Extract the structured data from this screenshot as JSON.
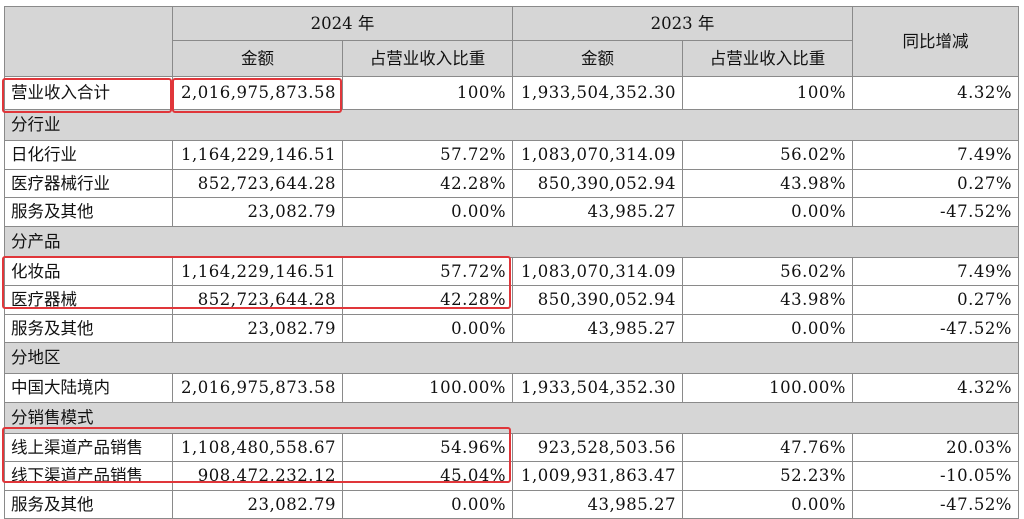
{
  "header": {
    "year_2024": "2024 年",
    "year_2023": "2023 年",
    "yoy": "同比增减",
    "amount": "金额",
    "ratio": "占营业收入比重"
  },
  "total": {
    "label": "营业收入合计",
    "amt_2024": "2,016,975,873.58",
    "pct_2024": "100%",
    "amt_2023": "1,933,504,352.30",
    "pct_2023": "100%",
    "yoy": "4.32%"
  },
  "sections": [
    {
      "title": "分行业",
      "rows": [
        {
          "label": "日化行业",
          "amt_2024": "1,164,229,146.51",
          "pct_2024": "57.72%",
          "amt_2023": "1,083,070,314.09",
          "pct_2023": "56.02%",
          "yoy": "7.49%"
        },
        {
          "label": "医疗器械行业",
          "amt_2024": "852,723,644.28",
          "pct_2024": "42.28%",
          "amt_2023": "850,390,052.94",
          "pct_2023": "43.98%",
          "yoy": "0.27%"
        },
        {
          "label": "服务及其他",
          "amt_2024": "23,082.79",
          "pct_2024": "0.00%",
          "amt_2023": "43,985.27",
          "pct_2023": "0.00%",
          "yoy": "-47.52%"
        }
      ]
    },
    {
      "title": "分产品",
      "rows": [
        {
          "label": "化妆品",
          "amt_2024": "1,164,229,146.51",
          "pct_2024": "57.72%",
          "amt_2023": "1,083,070,314.09",
          "pct_2023": "56.02%",
          "yoy": "7.49%"
        },
        {
          "label": "医疗器械",
          "amt_2024": "852,723,644.28",
          "pct_2024": "42.28%",
          "amt_2023": "850,390,052.94",
          "pct_2023": "43.98%",
          "yoy": "0.27%"
        },
        {
          "label": "服务及其他",
          "amt_2024": "23,082.79",
          "pct_2024": "0.00%",
          "amt_2023": "43,985.27",
          "pct_2023": "0.00%",
          "yoy": "-47.52%"
        }
      ]
    },
    {
      "title": "分地区",
      "rows": [
        {
          "label": "中国大陆境内",
          "amt_2024": "2,016,975,873.58",
          "pct_2024": "100.00%",
          "amt_2023": "1,933,504,352.30",
          "pct_2023": "100.00%",
          "yoy": "4.32%"
        }
      ]
    },
    {
      "title": "分销售模式",
      "rows": [
        {
          "label": "线上渠道产品销售",
          "amt_2024": "1,108,480,558.67",
          "pct_2024": "54.96%",
          "amt_2023": "923,528,503.56",
          "pct_2023": "47.76%",
          "yoy": "20.03%"
        },
        {
          "label": "线下渠道产品销售",
          "amt_2024": "908,472,232.12",
          "pct_2024": "45.04%",
          "amt_2023": "1,009,931,863.47",
          "pct_2023": "52.23%",
          "yoy": "-10.05%"
        },
        {
          "label": "服务及其他",
          "amt_2024": "23,082.79",
          "pct_2024": "0.00%",
          "amt_2023": "43,985.27",
          "pct_2023": "0.00%",
          "yoy": "-47.52%"
        }
      ]
    }
  ],
  "highlight_color": "#e0363a"
}
